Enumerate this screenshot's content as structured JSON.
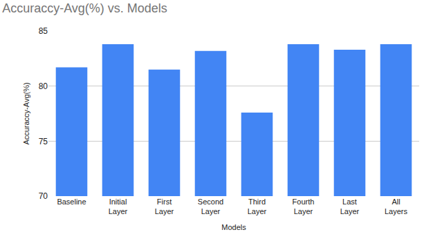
{
  "chart_data": {
    "type": "bar",
    "title": "Accuraccy-Avg(%) vs. Models",
    "x_label": "Models",
    "y_label": "Accuraccy-Avg(%)",
    "categories": [
      "Baseline",
      "Initial Layer",
      "First Layer",
      "Second Layer",
      "Third Layer",
      "Fourth Layer",
      "Last Layer",
      "All Layers"
    ],
    "values": [
      81.7,
      83.8,
      81.5,
      83.2,
      77.6,
      83.8,
      83.3,
      83.8
    ],
    "color": "#4285f4",
    "ylim": [
      70,
      85
    ],
    "yticks": [
      70,
      75,
      80,
      85
    ],
    "grid": true
  }
}
